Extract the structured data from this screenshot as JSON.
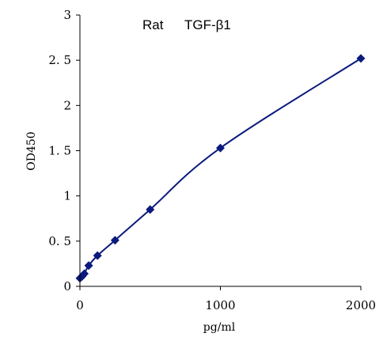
{
  "chart_data": {
    "type": "line",
    "title_left": "Rat",
    "title_right": "TGF-β1",
    "xlabel": "pg/ml",
    "ylabel": "OD450",
    "xlim": [
      0,
      2000
    ],
    "ylim": [
      0,
      3
    ],
    "x_ticks": [
      0,
      1000,
      2000
    ],
    "x_tick_labels": [
      "0",
      "1000",
      "2000"
    ],
    "y_ticks": [
      0,
      0.5,
      1,
      1.5,
      2,
      2.5,
      3
    ],
    "y_tick_labels": [
      "0",
      "0. 5",
      "1",
      "1. 5",
      "2",
      "2. 5",
      "3"
    ],
    "grid": false,
    "legend": "none",
    "series": [
      {
        "color": "#0a1a7d",
        "marker": "diamond",
        "x": [
          0,
          15.6,
          31.25,
          62.5,
          125,
          250,
          500,
          1000,
          2000
        ],
        "y": [
          0.09,
          0.11,
          0.14,
          0.23,
          0.34,
          0.51,
          0.85,
          1.53,
          2.52
        ]
      }
    ]
  }
}
